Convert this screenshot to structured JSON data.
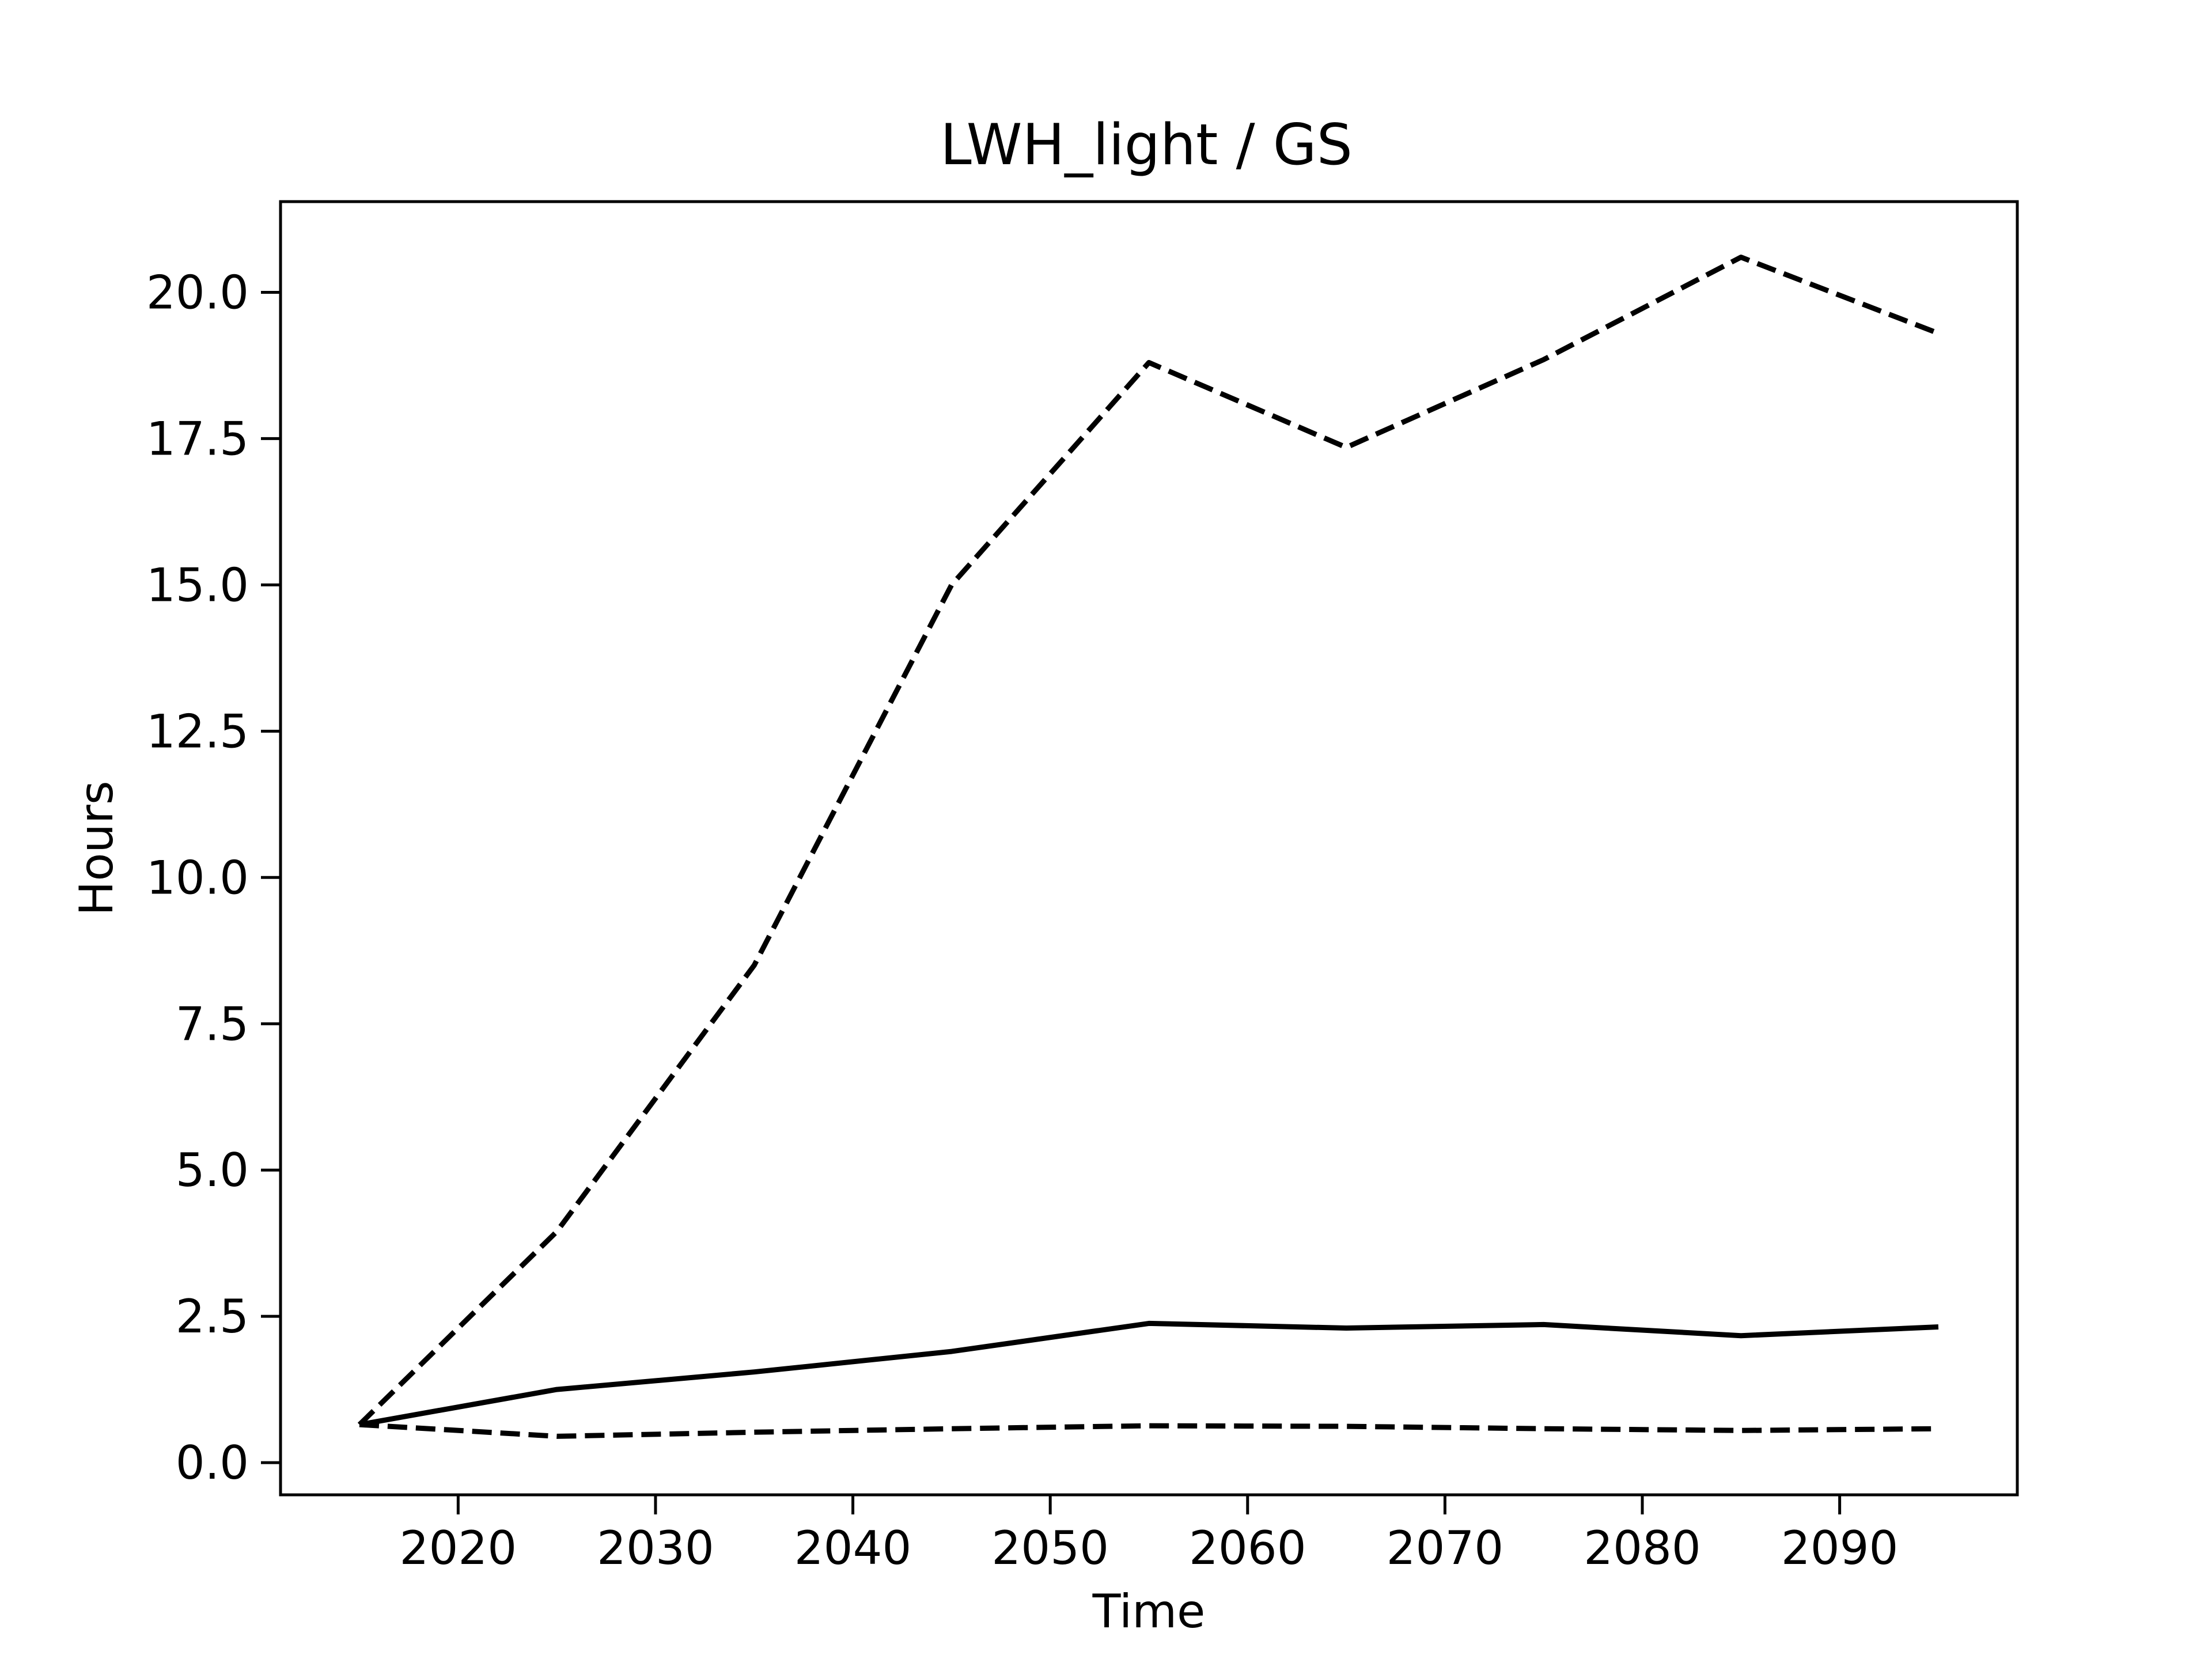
{
  "chart_data": {
    "type": "line",
    "title": "LWH_light / GS",
    "xlabel": "Time",
    "ylabel": "Hours",
    "xlim": [
      2011,
      2099
    ],
    "ylim": [
      -0.55,
      21.55
    ],
    "xticks": [
      2020,
      2030,
      2040,
      2050,
      2060,
      2070,
      2080,
      2090
    ],
    "yticks": [
      0.0,
      2.5,
      5.0,
      7.5,
      10.0,
      12.5,
      15.0,
      17.5,
      20.0
    ],
    "ytick_labels": [
      "0.0",
      "2.5",
      "5.0",
      "7.5",
      "10.0",
      "12.5",
      "15.0",
      "17.5",
      "20.0"
    ],
    "grid": false,
    "x": [
      2015,
      2025,
      2035,
      2045,
      2055,
      2065,
      2075,
      2085,
      2095
    ],
    "series": [
      {
        "style": "dashed",
        "color": "#000000",
        "values": [
          0.65,
          3.95,
          8.5,
          15.0,
          18.8,
          17.35,
          18.85,
          20.6,
          19.3
        ]
      },
      {
        "style": "solid",
        "color": "#000000",
        "values": [
          0.65,
          1.25,
          1.55,
          1.9,
          2.38,
          2.3,
          2.36,
          2.17,
          2.32
        ]
      },
      {
        "style": "dashed",
        "color": "#000000",
        "values": [
          0.65,
          0.45,
          0.52,
          0.58,
          0.63,
          0.62,
          0.58,
          0.55,
          0.58
        ]
      }
    ]
  }
}
